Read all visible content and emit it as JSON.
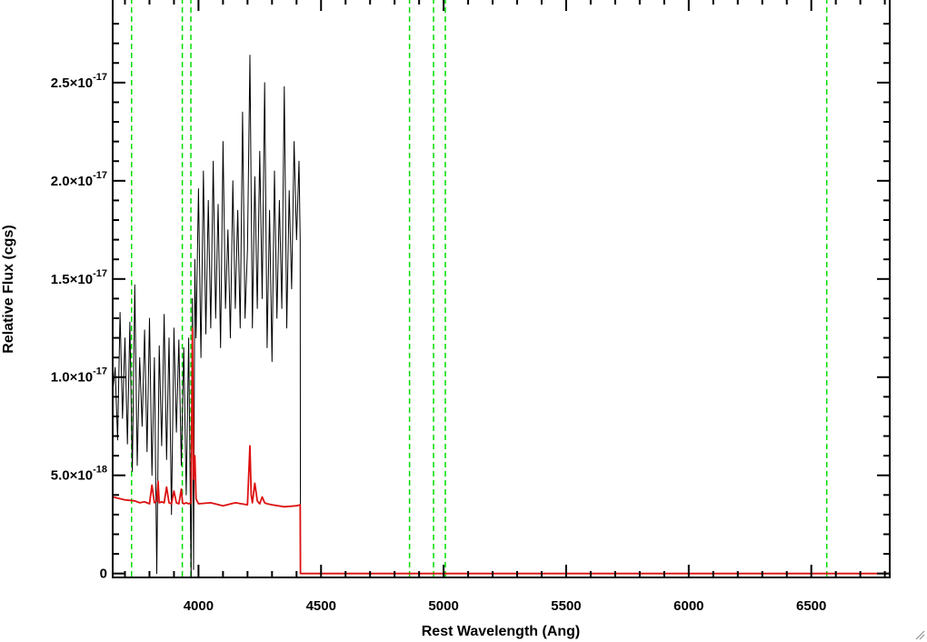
{
  "chart_data": {
    "type": "line",
    "xlabel": "Rest Wavelength (Ang)",
    "ylabel": "Relative Flux (cgs)",
    "xlim": [
      3650,
      6820
    ],
    "ylim": [
      -2e-19,
      2.93e-17
    ],
    "x_ticks": [
      {
        "value": 4000,
        "label": "4000"
      },
      {
        "value": 4500,
        "label": "4500"
      },
      {
        "value": 5000,
        "label": "5000"
      },
      {
        "value": 5500,
        "label": "5500"
      },
      {
        "value": 6000,
        "label": "6000"
      },
      {
        "value": 6500,
        "label": "6500"
      }
    ],
    "y_ticks": [
      {
        "value": 0,
        "mant": "0",
        "exp": ""
      },
      {
        "value": 5e-18,
        "mant": "5.0×10",
        "exp": "-18"
      },
      {
        "value": 1e-17,
        "mant": "1.0×10",
        "exp": "-17"
      },
      {
        "value": 1.5e-17,
        "mant": "1.5×10",
        "exp": "-17"
      },
      {
        "value": 2e-17,
        "mant": "2.0×10",
        "exp": "-17"
      },
      {
        "value": 2.5e-17,
        "mant": "2.5×10",
        "exp": "-17"
      }
    ],
    "vertical_lines": [
      3727,
      3934,
      3969,
      4861,
      4959,
      5007,
      6563
    ],
    "vline_color": "#00dd00",
    "series": [
      {
        "color": "#000000",
        "x": [
          3650,
          3660,
          3670,
          3680,
          3690,
          3700,
          3710,
          3720,
          3730,
          3740,
          3750,
          3760,
          3770,
          3780,
          3790,
          3800,
          3810,
          3820,
          3830,
          3840,
          3850,
          3860,
          3870,
          3880,
          3890,
          3900,
          3910,
          3920,
          3930,
          3940,
          3950,
          3960,
          3970,
          3975,
          3980,
          3985,
          3990,
          4000,
          4010,
          4020,
          4030,
          4040,
          4050,
          4060,
          4070,
          4080,
          4090,
          4100,
          4110,
          4120,
          4130,
          4140,
          4150,
          4160,
          4170,
          4180,
          4190,
          4200,
          4210,
          4220,
          4230,
          4240,
          4250,
          4260,
          4270,
          4280,
          4290,
          4300,
          4310,
          4320,
          4330,
          4340,
          4350,
          4360,
          4370,
          4380,
          4390,
          4400,
          4410,
          4415,
          4416,
          4420,
          6820
        ],
        "y": [
          9.2e-18,
          1.05e-17,
          6.8e-18,
          1.33e-17,
          7.9e-18,
          1.2e-17,
          6.6e-18,
          1.28e-17,
          5.2e-18,
          1.47e-17,
          5.5e-18,
          1.1e-17,
          7.5e-18,
          1.24e-17,
          6.2e-18,
          1.3e-17,
          5e-18,
          1.1e-17,
          0,
          1.16e-17,
          6.5e-18,
          1.32e-17,
          5.8e-18,
          1.2e-17,
          3e-18,
          1.25e-17,
          7.2e-18,
          1.19e-17,
          5.5e-18,
          1.15e-17,
          4e-18,
          1.2e-17,
          -2e-19,
          1.4e-17,
          2e-19,
          1.6e-17,
          1.2e-17,
          1.96e-17,
          1.1e-17,
          2.05e-17,
          1.22e-17,
          1.9e-17,
          1.25e-17,
          2.1e-17,
          1.3e-17,
          1.88e-17,
          1.15e-17,
          2.2e-17,
          1.35e-17,
          1.75e-17,
          1.2e-17,
          2e-17,
          1.35e-17,
          1.85e-17,
          1.25e-17,
          2.35e-17,
          1.3e-17,
          1.65e-17,
          2.64e-17,
          1.25e-17,
          2.02e-17,
          1.35e-17,
          2.15e-17,
          1.4e-17,
          2.5e-17,
          1.15e-17,
          1.85e-17,
          1.08e-17,
          2.05e-17,
          1.3e-17,
          1.9e-17,
          1.35e-17,
          2.48e-17,
          1.25e-17,
          1.95e-17,
          1.45e-17,
          2.2e-17,
          1.7e-17,
          2.1e-17,
          1.7e-17,
          0,
          0,
          0
        ]
      },
      {
        "color": "#dd1111",
        "x": [
          3650,
          3700,
          3740,
          3760,
          3780,
          3800,
          3810,
          3820,
          3830,
          3835,
          3840,
          3850,
          3860,
          3870,
          3880,
          3890,
          3900,
          3910,
          3920,
          3930,
          3935,
          3940,
          3950,
          3960,
          3970,
          3975,
          3980,
          3985,
          3990,
          4000,
          4050,
          4100,
          4150,
          4200,
          4210,
          4215,
          4220,
          4230,
          4240,
          4250,
          4260,
          4270,
          4280,
          4300,
          4350,
          4400,
          4415,
          4416,
          4420,
          6820
        ],
        "y": [
          3.9e-18,
          3.75e-18,
          3.7e-18,
          3.6e-18,
          3.65e-18,
          3.55e-18,
          4.5e-18,
          3.6e-18,
          3.7e-18,
          4.7e-18,
          3.6e-18,
          3.65e-18,
          3.6e-18,
          4.4e-18,
          3.6e-18,
          3.55e-18,
          4.2e-18,
          3.6e-18,
          3.55e-18,
          4.3e-18,
          3.6e-18,
          3.55e-18,
          3.6e-18,
          3.55e-18,
          3.6e-18,
          1.25e-17,
          4.8e-18,
          6e-18,
          3.8e-18,
          3.55e-18,
          3.6e-18,
          3.45e-18,
          3.6e-18,
          3.5e-18,
          6.5e-18,
          4e-18,
          3.6e-18,
          4.6e-18,
          3.7e-18,
          3.55e-18,
          3.9e-18,
          3.6e-18,
          3.55e-18,
          3.5e-18,
          3.4e-18,
          3.45e-18,
          3.5e-18,
          0,
          0,
          0
        ]
      }
    ]
  }
}
